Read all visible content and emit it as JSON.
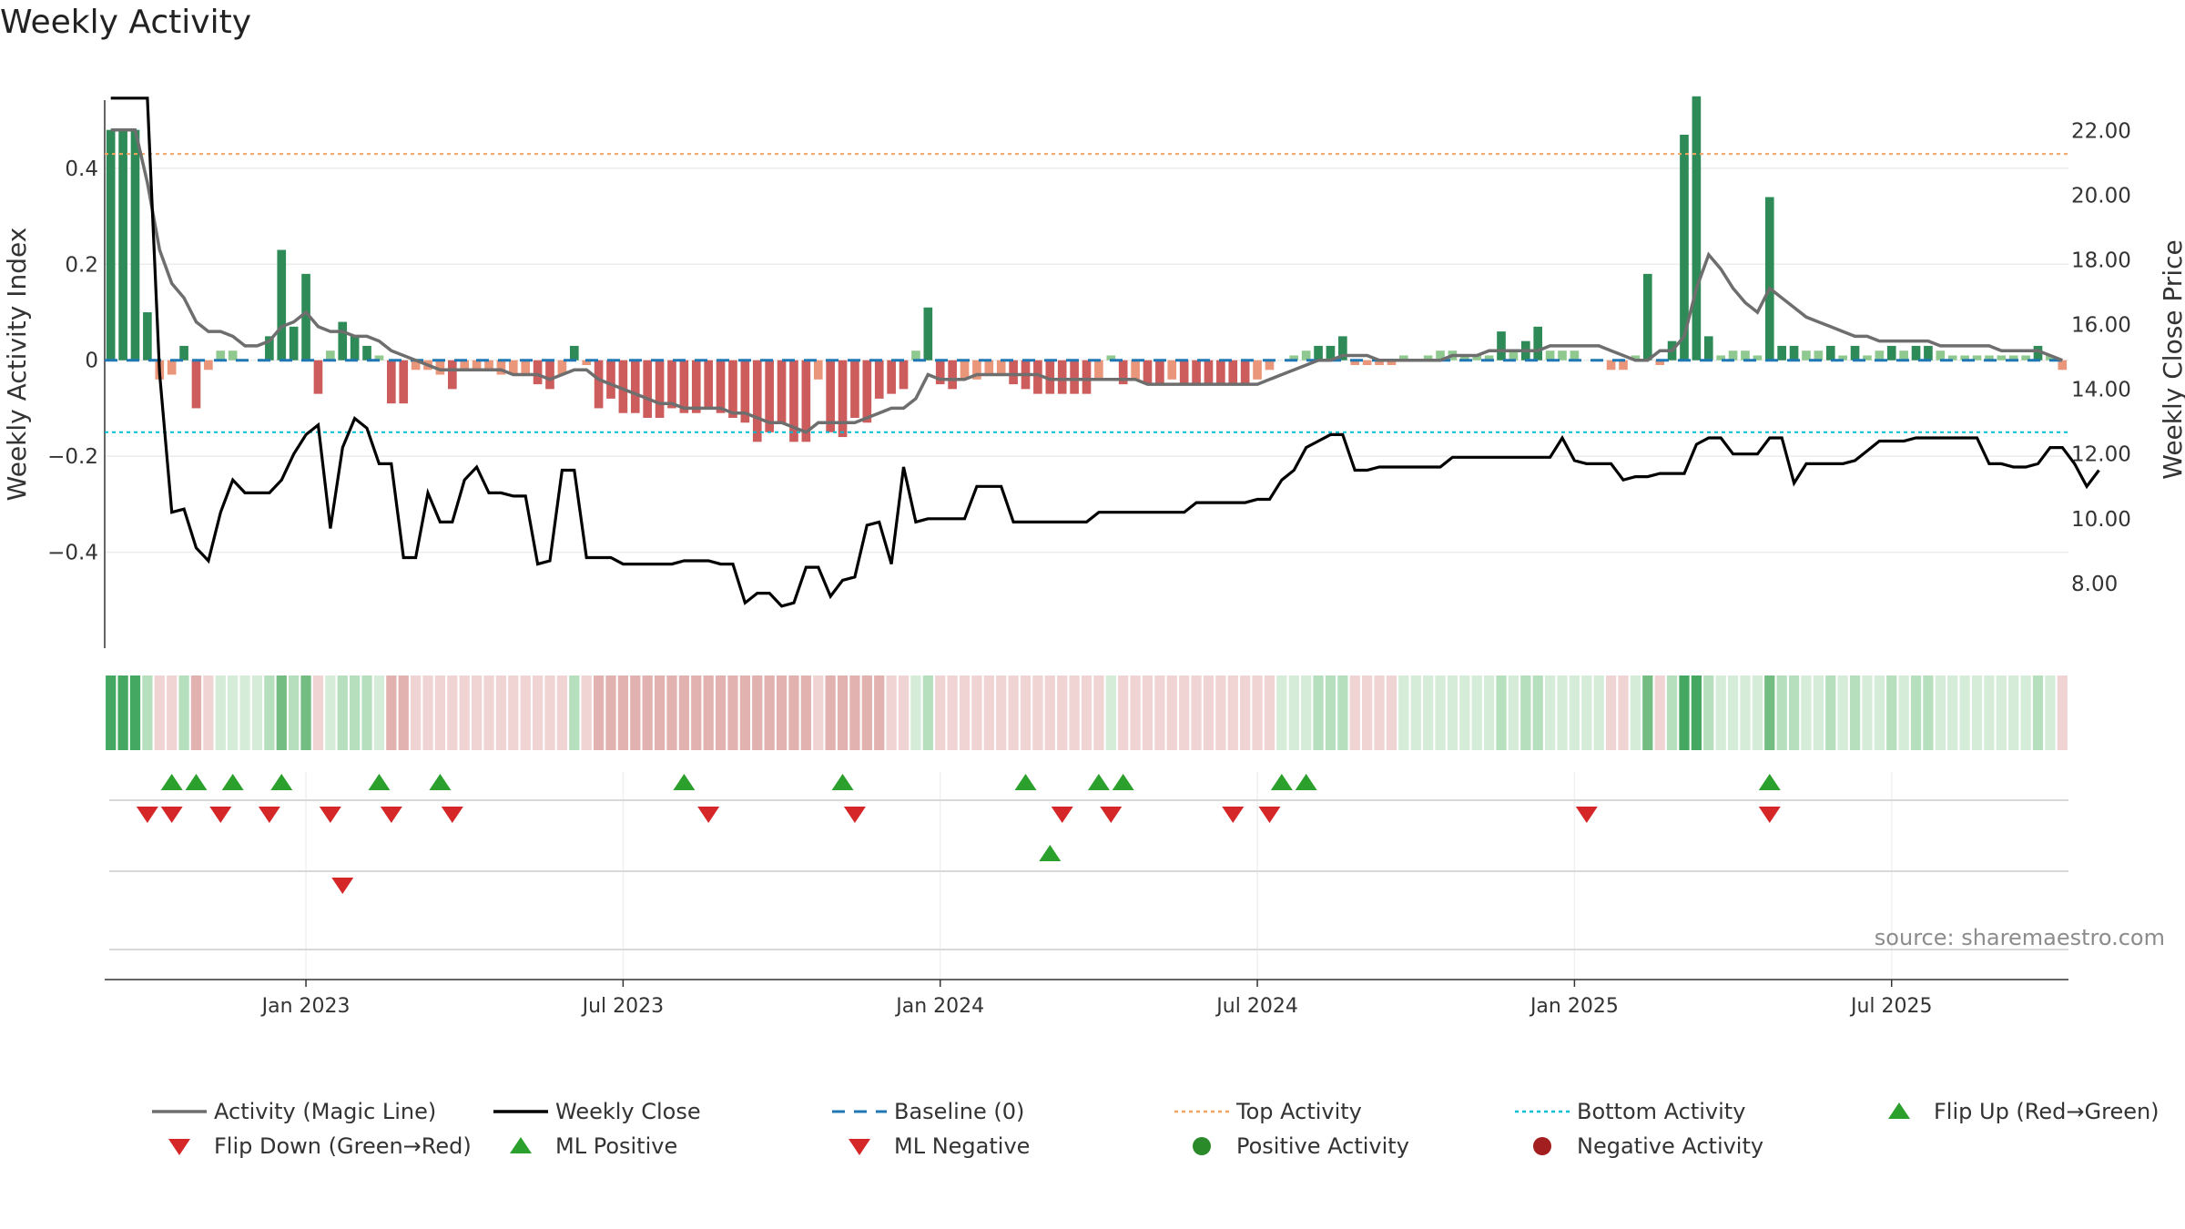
{
  "chart_data": {
    "type": "bar",
    "title": "Weekly Activity",
    "ylabel": "Weekly Activity Index",
    "y2label": "Weekly Close Price",
    "ylim": [
      -0.6,
      0.58
    ],
    "y2lim": [
      6.0,
      23.5
    ],
    "yticks": [
      0.4,
      0.2,
      0,
      -0.2,
      -0.4
    ],
    "ytick_labels": [
      "0.4",
      "0.2",
      "0",
      "−0.2",
      "−0.4"
    ],
    "y2ticks": [
      22,
      20,
      18,
      16,
      14,
      12,
      10,
      8
    ],
    "y2tick_labels": [
      "22.00",
      "20.00",
      "18.00",
      "16.00",
      "14.00",
      "12.00",
      "10.00",
      "8.00"
    ],
    "x_start": "2022-09-12",
    "x_end": "2025-10-20",
    "xtick_labels": [
      "Jan 2023",
      "Jul 2023",
      "Jan 2024",
      "Jul 2024",
      "Jan 2025",
      "Jul 2025"
    ],
    "xtick_weeks": [
      16,
      42,
      68,
      94,
      120,
      146
    ],
    "top_activity": 0.43,
    "bottom_activity": -0.15,
    "watermark": "source: sharemaestro.com",
    "colors": {
      "pos_strong": "#2e8b57",
      "pos_weak": "#8fc98f",
      "neg_strong": "#cd5c5c",
      "neg_weak": "#e9967a",
      "magic": "#6e6e6e",
      "close": "#000000",
      "baseline": "#1f77b4",
      "top": "#f4a460",
      "bottom": "#00bcd4",
      "up": "#2ca02c",
      "down": "#d62728"
    },
    "activity": [
      0.48,
      0.48,
      0.48,
      0.1,
      -0.04,
      -0.03,
      0.03,
      -0.1,
      -0.02,
      0.02,
      0.02,
      0,
      0,
      0.05,
      0.23,
      0.07,
      0.18,
      -0.07,
      0.02,
      0.08,
      0.05,
      0.03,
      0.01,
      -0.09,
      -0.09,
      -0.02,
      -0.02,
      -0.03,
      -0.06,
      -0.02,
      -0.02,
      -0.02,
      -0.03,
      -0.03,
      -0.03,
      -0.05,
      -0.06,
      -0.03,
      0.03,
      -0.01,
      -0.1,
      -0.08,
      -0.11,
      -0.11,
      -0.12,
      -0.12,
      -0.1,
      -0.11,
      -0.11,
      -0.1,
      -0.11,
      -0.12,
      -0.13,
      -0.17,
      -0.15,
      -0.13,
      -0.17,
      -0.17,
      -0.04,
      -0.15,
      -0.16,
      -0.12,
      -0.13,
      -0.08,
      -0.07,
      -0.06,
      0.02,
      0.11,
      -0.05,
      -0.06,
      -0.04,
      -0.04,
      -0.03,
      -0.03,
      -0.05,
      -0.06,
      -0.07,
      -0.07,
      -0.07,
      -0.07,
      -0.07,
      -0.04,
      0.01,
      -0.05,
      -0.04,
      -0.05,
      -0.05,
      -0.04,
      -0.05,
      -0.05,
      -0.05,
      -0.05,
      -0.05,
      -0.05,
      -0.04,
      -0.02,
      0,
      0.01,
      0.02,
      0.03,
      0.03,
      0.05,
      -0.01,
      -0.01,
      -0.01,
      -0.01,
      0.01,
      0,
      0.01,
      0.02,
      0.02,
      0.01,
      0.01,
      0.01,
      0.06,
      0.02,
      0.04,
      0.07,
      0.02,
      0.02,
      0.02,
      0,
      0,
      -0.02,
      -0.02,
      0.01,
      0.18,
      -0.01,
      0.04,
      0.47,
      0.55,
      0.05,
      0.01,
      0.02,
      0.02,
      0.01,
      0.34,
      0.03,
      0.03,
      0.02,
      0.02,
      0.03,
      0.01,
      0.03,
      0.01,
      0.02,
      0.03,
      0.02,
      0.03,
      0.03,
      0.02,
      0.01,
      0.01,
      0.01,
      0.01,
      0.01,
      0.01,
      0.01,
      0.03,
      0.01,
      -0.02
    ],
    "magic_line": [
      0.48,
      0.48,
      0.48,
      0.37,
      0.23,
      0.16,
      0.13,
      0.08,
      0.06,
      0.06,
      0.05,
      0.03,
      0.03,
      0.04,
      0.07,
      0.08,
      0.1,
      0.07,
      0.06,
      0.06,
      0.05,
      0.05,
      0.04,
      0.02,
      0.01,
      0,
      -0.01,
      -0.02,
      -0.02,
      -0.02,
      -0.02,
      -0.02,
      -0.02,
      -0.03,
      -0.03,
      -0.03,
      -0.04,
      -0.03,
      -0.02,
      -0.02,
      -0.04,
      -0.05,
      -0.06,
      -0.07,
      -0.08,
      -0.09,
      -0.09,
      -0.1,
      -0.1,
      -0.1,
      -0.1,
      -0.11,
      -0.11,
      -0.12,
      -0.13,
      -0.13,
      -0.14,
      -0.15,
      -0.13,
      -0.13,
      -0.13,
      -0.13,
      -0.12,
      -0.11,
      -0.1,
      -0.1,
      -0.08,
      -0.03,
      -0.04,
      -0.04,
      -0.04,
      -0.03,
      -0.03,
      -0.03,
      -0.03,
      -0.03,
      -0.03,
      -0.04,
      -0.04,
      -0.04,
      -0.04,
      -0.04,
      -0.04,
      -0.04,
      -0.04,
      -0.05,
      -0.05,
      -0.05,
      -0.05,
      -0.05,
      -0.05,
      -0.05,
      -0.05,
      -0.05,
      -0.05,
      -0.04,
      -0.03,
      -0.02,
      -0.01,
      0,
      0,
      0.01,
      0.01,
      0.01,
      0,
      0,
      0,
      0,
      0,
      0,
      0.01,
      0.01,
      0.01,
      0.02,
      0.02,
      0.02,
      0.02,
      0.02,
      0.03,
      0.03,
      0.03,
      0.03,
      0.03,
      0.02,
      0.01,
      0,
      0,
      0.02,
      0.02,
      0.05,
      0.15,
      0.22,
      0.19,
      0.15,
      0.12,
      0.1,
      0.15,
      0.13,
      0.11,
      0.09,
      0.08,
      0.07,
      0.06,
      0.05,
      0.05,
      0.04,
      0.04,
      0.04,
      0.04,
      0.04,
      0.03,
      0.03,
      0.03,
      0.03,
      0.03,
      0.02,
      0.02,
      0.02,
      0.02,
      0.01,
      0
    ],
    "close": [
      23,
      23,
      23,
      23,
      14.5,
      10.2,
      10.3,
      9.1,
      8.7,
      10.2,
      11.2,
      10.8,
      10.8,
      10.8,
      11.2,
      12,
      12.6,
      12.9,
      9.7,
      12.2,
      13.1,
      12.8,
      11.7,
      11.7,
      8.8,
      8.8,
      10.8,
      9.9,
      9.9,
      11.2,
      11.6,
      10.8,
      10.8,
      10.7,
      10.7,
      8.6,
      8.7,
      11.5,
      11.5,
      8.8,
      8.8,
      8.8,
      8.6,
      8.6,
      8.6,
      8.6,
      8.6,
      8.7,
      8.7,
      8.7,
      8.6,
      8.6,
      7.4,
      7.7,
      7.7,
      7.3,
      7.4,
      8.5,
      8.5,
      7.6,
      8.1,
      8.2,
      9.8,
      9.9,
      8.6,
      11.6,
      9.9,
      10,
      10,
      10,
      10,
      11,
      11,
      11,
      9.9,
      9.9,
      9.9,
      9.9,
      9.9,
      9.9,
      9.9,
      10.2,
      10.2,
      10.2,
      10.2,
      10.2,
      10.2,
      10.2,
      10.2,
      10.5,
      10.5,
      10.5,
      10.5,
      10.5,
      10.6,
      10.6,
      11.2,
      11.5,
      12.2,
      12.4,
      12.6,
      12.6,
      11.5,
      11.5,
      11.6,
      11.6,
      11.6,
      11.6,
      11.6,
      11.6,
      11.9,
      11.9,
      11.9,
      11.9,
      11.9,
      11.9,
      11.9,
      11.9,
      11.9,
      12.5,
      11.8,
      11.7,
      11.7,
      11.7,
      11.2,
      11.3,
      11.3,
      11.4,
      11.4,
      11.4,
      12.3,
      12.5,
      12.5,
      12,
      12,
      12,
      12.5,
      12.5,
      11.1,
      11.7,
      11.7,
      11.7,
      11.7,
      11.8,
      12.1,
      12.4,
      12.4,
      12.4,
      12.5,
      12.5,
      12.5,
      12.5,
      12.5,
      12.5,
      11.7,
      11.7,
      11.6,
      11.6,
      11.7,
      12.2,
      12.2,
      11.7,
      11,
      11.5
    ],
    "flip_up_weeks": [
      5,
      7,
      10,
      14,
      22,
      27,
      47,
      60,
      75,
      81,
      83,
      96,
      98,
      136
    ],
    "flip_down_weeks": [
      3,
      5,
      9,
      13,
      18,
      23,
      28,
      49,
      61,
      78,
      82,
      92,
      95,
      121,
      136
    ],
    "ml_positive_weeks": [
      77
    ],
    "ml_negative_weeks": [
      19
    ],
    "legend": [
      {
        "key": "magic",
        "label": "Activity (Magic Line)"
      },
      {
        "key": "close",
        "label": "Weekly Close"
      },
      {
        "key": "baseline",
        "label": "Baseline (0)"
      },
      {
        "key": "top",
        "label": "Top Activity"
      },
      {
        "key": "bottom",
        "label": "Bottom Activity"
      },
      {
        "key": "flip_up",
        "label": "Flip Up (Red→Green)"
      },
      {
        "key": "flip_down",
        "label": "Flip Down (Green→Red)"
      },
      {
        "key": "ml_pos",
        "label": "ML Positive"
      },
      {
        "key": "ml_neg",
        "label": "ML Negative"
      },
      {
        "key": "pos_act",
        "label": "Positive Activity"
      },
      {
        "key": "neg_act",
        "label": "Negative Activity"
      }
    ]
  }
}
